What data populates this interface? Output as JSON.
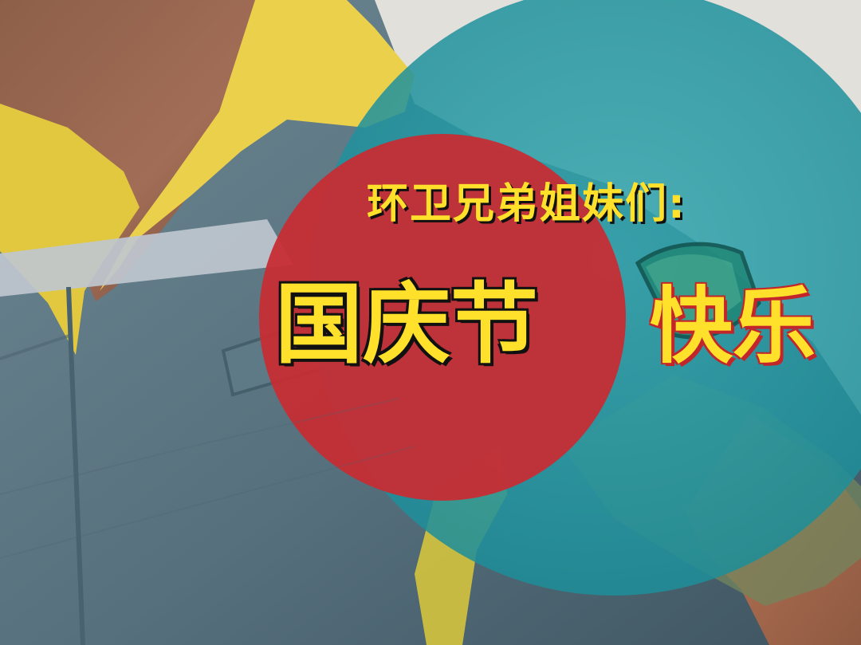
{
  "poster": {
    "greeting": "环卫兄弟姐妹们:",
    "title_main": "国庆节",
    "title_sub": "快乐"
  },
  "colors": {
    "uniform_blue": "#55717f",
    "collar_yellow": "#e8cf45",
    "teal_circle": "#2a9fab",
    "red_circle": "#c62d34",
    "text_yellow": "#ffe02a"
  }
}
